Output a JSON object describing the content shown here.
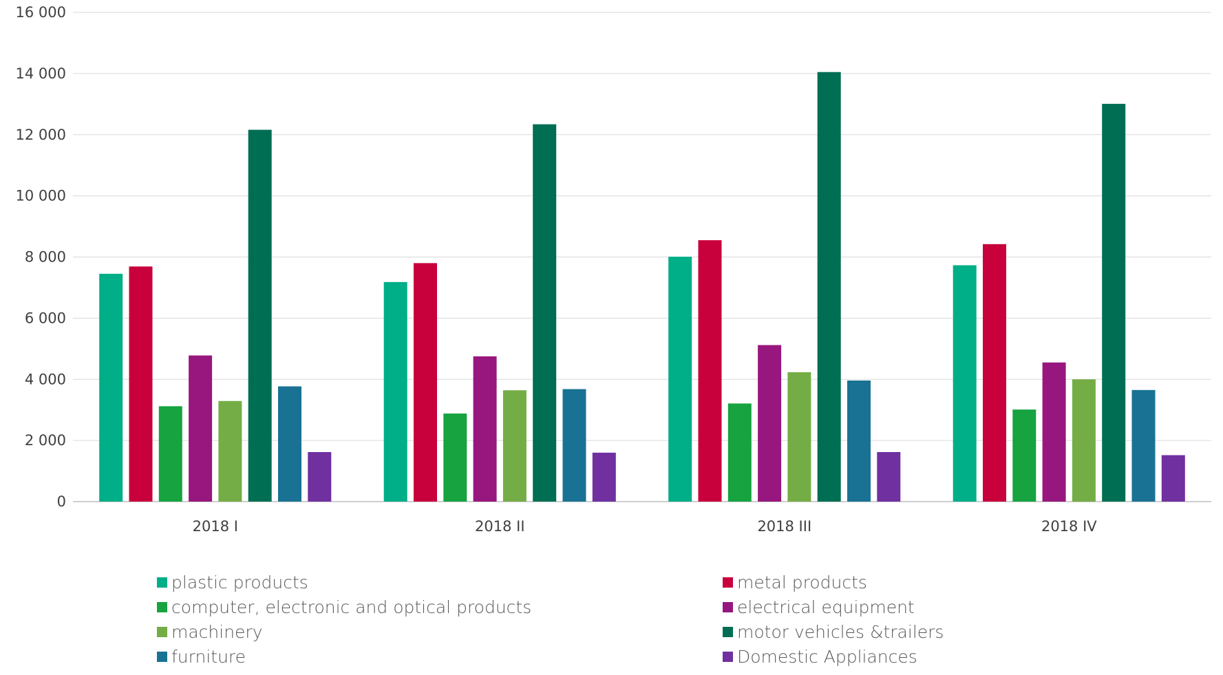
{
  "chart_data": {
    "type": "bar",
    "title": "",
    "xlabel": "",
    "ylabel": "",
    "categories": [
      "2018 I",
      "2018 II",
      "2018 III",
      "2018 IV"
    ],
    "ylim": [
      0,
      16000
    ],
    "yticks": [
      "0",
      "2 000",
      "4 000",
      "6 000",
      "8 000",
      "10 000",
      "12 000",
      "14 000",
      "16 000"
    ],
    "ytick_values": [
      0,
      2000,
      4000,
      6000,
      8000,
      10000,
      12000,
      14000,
      16000
    ],
    "grid": true,
    "legend_position": "bottom",
    "series": [
      {
        "name": "plastic products",
        "color": "#00AE87",
        "values": [
          7450,
          7180,
          8010,
          7730
        ]
      },
      {
        "name": "metal products",
        "color": "#C8003C",
        "values": [
          7690,
          7800,
          8550,
          8420
        ]
      },
      {
        "name": "computer, electronic and optical products",
        "color": "#16A340",
        "values": [
          3120,
          2880,
          3210,
          3010
        ]
      },
      {
        "name": "electrical equipment",
        "color": "#97177E",
        "values": [
          4780,
          4750,
          5120,
          4550
        ]
      },
      {
        "name": "machinery",
        "color": "#74AD46",
        "values": [
          3290,
          3640,
          4230,
          4000
        ]
      },
      {
        "name": "motor vehicles &trailers",
        "color": "#006E53",
        "values": [
          12160,
          12340,
          14050,
          13010
        ]
      },
      {
        "name": "furniture",
        "color": "#197294",
        "values": [
          3770,
          3680,
          3960,
          3650
        ]
      },
      {
        "name": "Domestic Appliances",
        "color": "#7030A0",
        "values": [
          1620,
          1600,
          1620,
          1520
        ]
      }
    ]
  }
}
